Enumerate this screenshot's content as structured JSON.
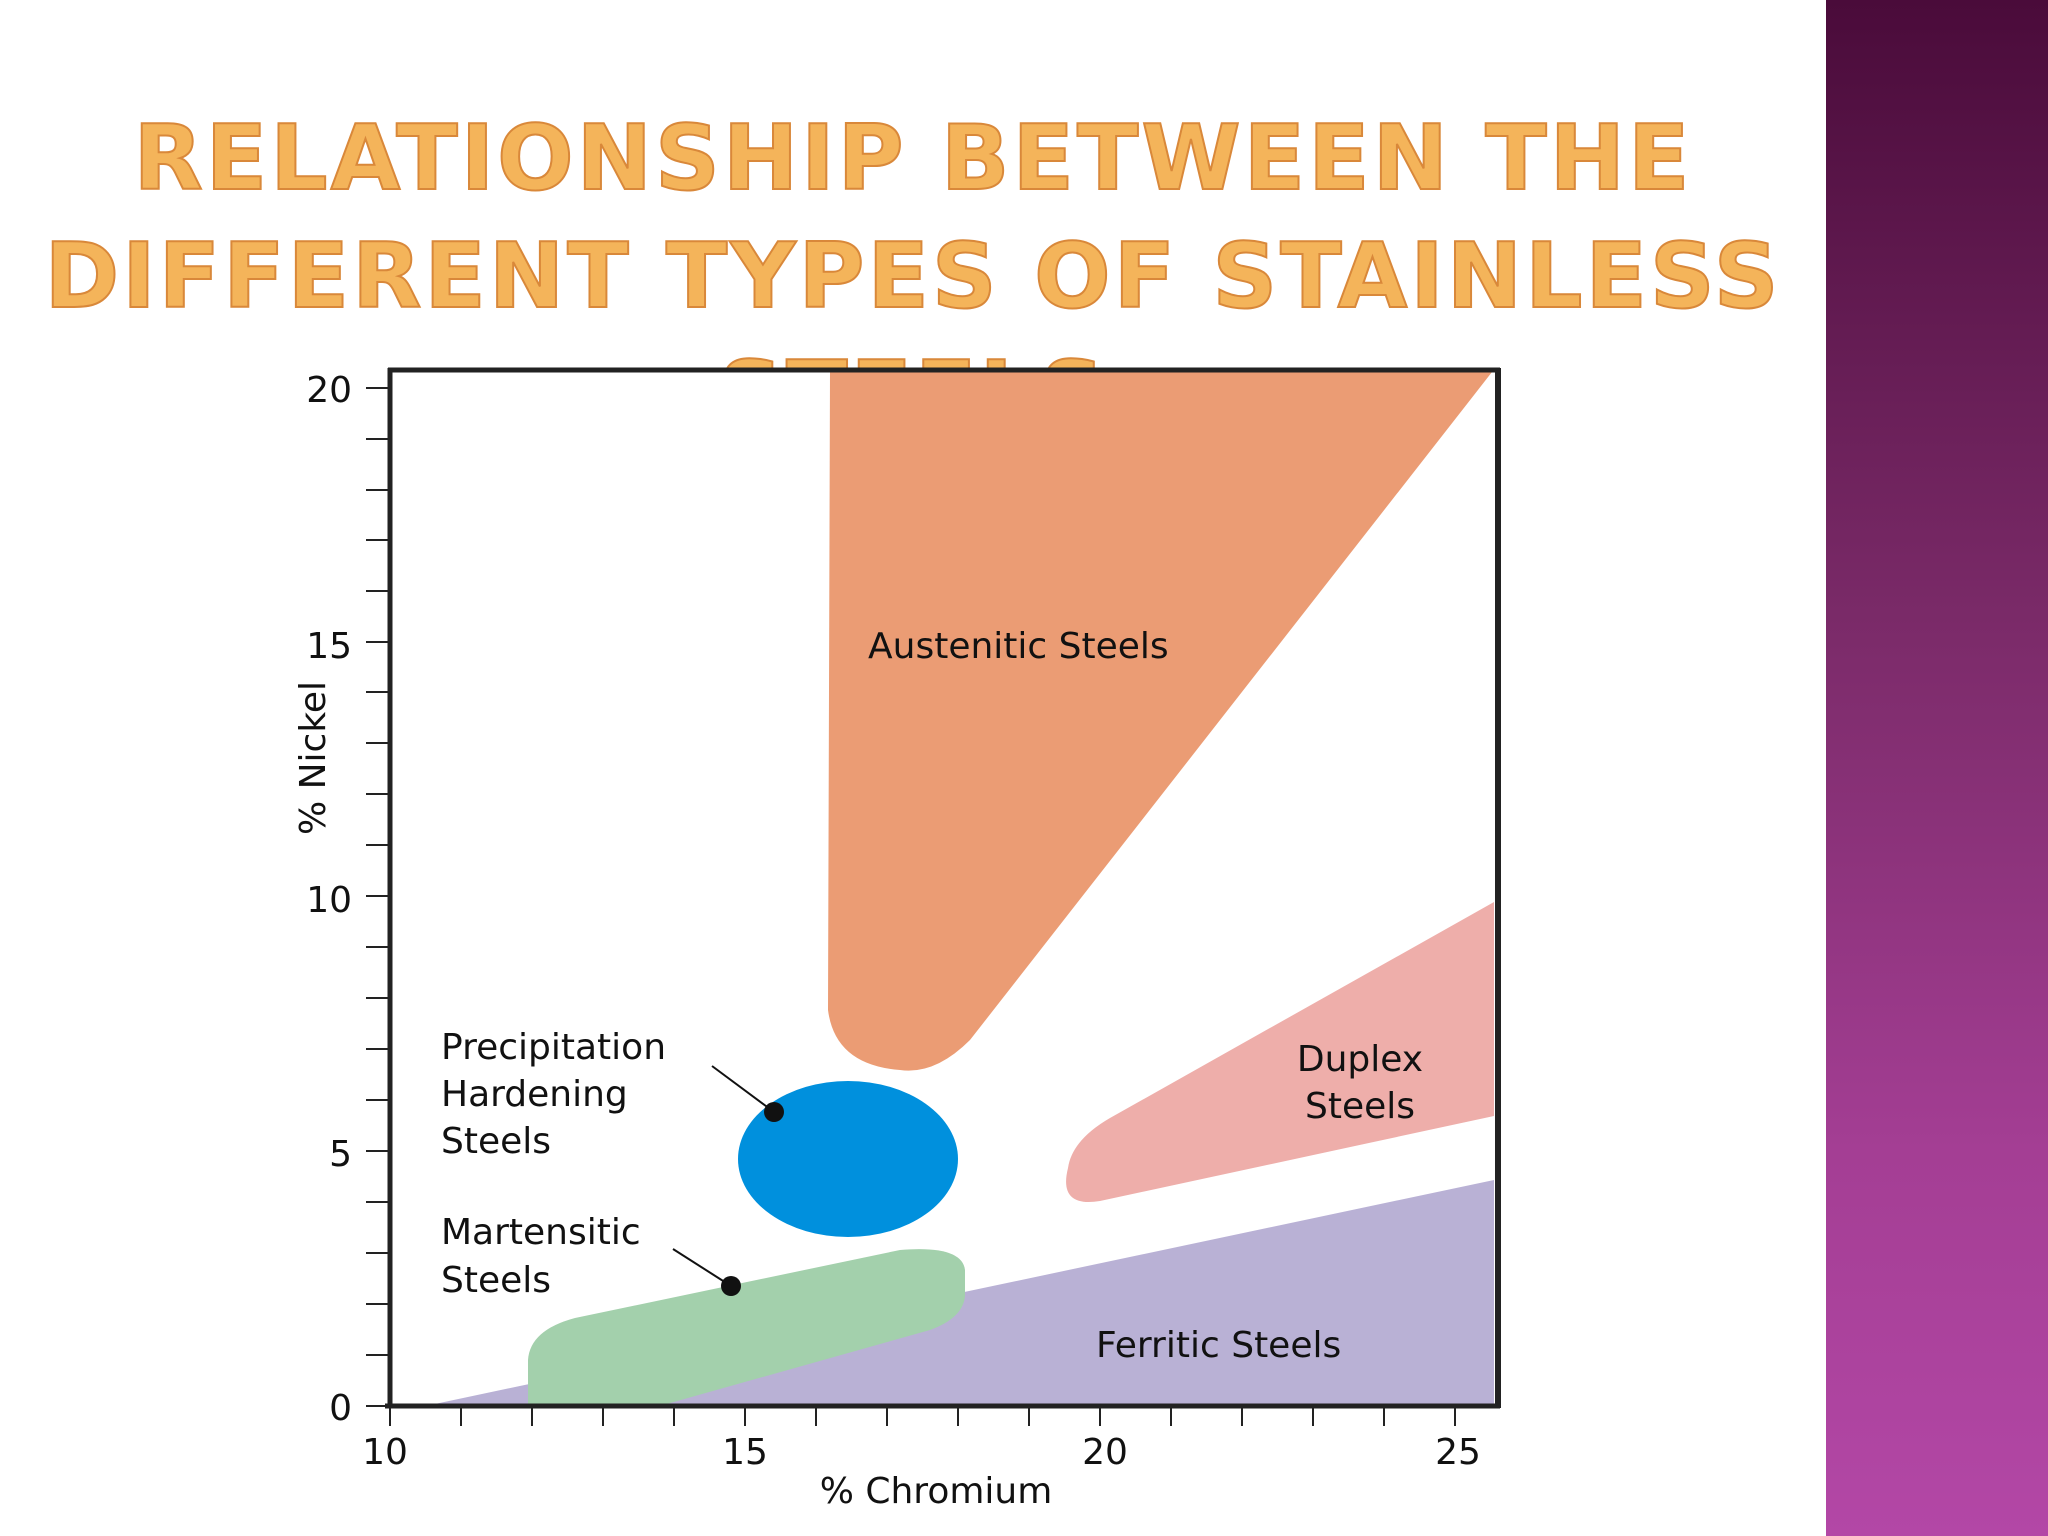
{
  "title": {
    "line1": "Relationship between the",
    "line2": "different types of Stainless Steels"
  },
  "axes": {
    "x_label": "% Chromium",
    "y_label": "% Nickel",
    "x_ticks": [
      "10",
      "15",
      "20",
      "25"
    ],
    "y_ticks": [
      "0",
      "5",
      "10",
      "15",
      "20"
    ],
    "x_range": [
      10,
      25.5
    ],
    "y_range": [
      0,
      20.3
    ]
  },
  "regions": {
    "austenitic": {
      "label": "Austenitic Steels",
      "color": "#eb9c74"
    },
    "duplex": {
      "line1": "Duplex",
      "line2": "Steels",
      "color": "#eeaeaa"
    },
    "ferritic": {
      "label": "Ferritic Steels",
      "color": "#b9b1d5"
    },
    "precipitation": {
      "line1": "Precipitation",
      "line2": "Hardening",
      "line3": "Steels",
      "color": "#0090dd"
    },
    "martensitic": {
      "line1": "Martensitic",
      "line2": "Steels",
      "color": "#a3d0ac"
    }
  },
  "colors": {
    "sidebar_top": "#4a0b3a",
    "sidebar_bottom": "#b347a6",
    "title_fill": "#f4b45a"
  }
}
